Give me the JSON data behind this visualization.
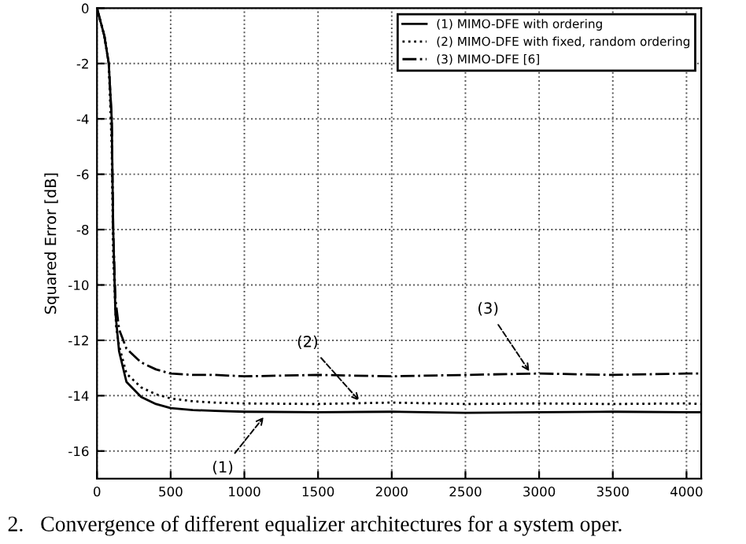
{
  "chart_data": {
    "type": "line",
    "ylabel": "Squared Error [dB]",
    "xlim": [
      0,
      4100
    ],
    "xticks": [
      0,
      500,
      1000,
      1500,
      2000,
      2500,
      3000,
      3500,
      4000
    ],
    "ylim": [
      -17,
      0
    ],
    "yticks": [
      0,
      -2,
      -4,
      -6,
      -8,
      -10,
      -12,
      -14,
      -16
    ],
    "grid": true,
    "legend": "top right",
    "series": [
      {
        "name": "(1) MIMO-DFE with ordering",
        "color": "#000000",
        "line_style": "solid",
        "x": [
          0,
          50,
          80,
          100,
          110,
          125,
          150,
          200,
          300,
          400,
          500,
          650,
          800,
          1000,
          1500,
          2000,
          2500,
          3000,
          3500,
          4000,
          4100
        ],
        "values": [
          0,
          -1,
          -2,
          -4,
          -8,
          -11,
          -12.4,
          -13.5,
          -14.05,
          -14.3,
          -14.45,
          -14.52,
          -14.55,
          -14.58,
          -14.6,
          -14.58,
          -14.62,
          -14.6,
          -14.58,
          -14.6,
          -14.6
        ]
      },
      {
        "name": "(2) MIMO-DFE with fixed, random ordering",
        "color": "#000000",
        "line_style": "dotted",
        "x": [
          0,
          50,
          80,
          100,
          110,
          130,
          150,
          200,
          300,
          400,
          500,
          650,
          800,
          1000,
          1500,
          2000,
          2500,
          3000,
          3500,
          4000,
          4100
        ],
        "values": [
          0,
          -1,
          -2,
          -5,
          -9,
          -11.5,
          -12.2,
          -13.2,
          -13.7,
          -13.95,
          -14.1,
          -14.2,
          -14.25,
          -14.28,
          -14.3,
          -14.25,
          -14.3,
          -14.28,
          -14.3,
          -14.28,
          -14.3
        ]
      },
      {
        "name": "(3) MIMO-DFE [6]",
        "color": "#000000",
        "line_style": "dashdot",
        "x": [
          0,
          50,
          80,
          100,
          110,
          125,
          150,
          200,
          300,
          400,
          500,
          650,
          800,
          1000,
          1500,
          2000,
          2500,
          3000,
          3500,
          4000,
          4100
        ],
        "values": [
          0,
          -1,
          -2,
          -4,
          -8,
          -10.5,
          -11.6,
          -12.3,
          -12.8,
          -13.05,
          -13.2,
          -13.25,
          -13.25,
          -13.3,
          -13.25,
          -13.3,
          -13.25,
          -13.2,
          -13.25,
          -13.2,
          -13.2
        ]
      }
    ],
    "annotations": [
      {
        "text": "(1)",
        "x": 1150,
        "y": -14.65
      },
      {
        "text": "(2)",
        "x": 1800,
        "y": -14.3
      },
      {
        "text": "(3)",
        "x": 2950,
        "y": -13.25
      },
      "2.   Convergence of different equalizer architectures for a system oper."
    ]
  }
}
